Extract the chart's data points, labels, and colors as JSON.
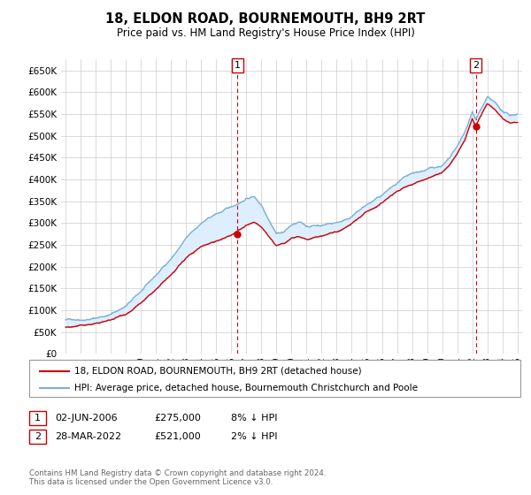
{
  "title": "18, ELDON ROAD, BOURNEMOUTH, BH9 2RT",
  "subtitle": "Price paid vs. HM Land Registry's House Price Index (HPI)",
  "ylim": [
    0,
    675000
  ],
  "xlim_start": 1994.7,
  "xlim_end": 2025.3,
  "legend_line1": "18, ELDON ROAD, BOURNEMOUTH, BH9 2RT (detached house)",
  "legend_line2": "HPI: Average price, detached house, Bournemouth Christchurch and Poole",
  "sale1_date": "02-JUN-2006",
  "sale1_price": "£275,000",
  "sale1_hpi": "8% ↓ HPI",
  "sale1_x": 2006.42,
  "sale1_y": 275000,
  "sale2_date": "28-MAR-2022",
  "sale2_price": "£521,000",
  "sale2_hpi": "2% ↓ HPI",
  "sale2_x": 2022.23,
  "sale2_y": 521000,
  "hpi_color": "#7bafd4",
  "hpi_fill": "#ddeeff",
  "sale_color": "#cc0000",
  "background_color": "#ffffff",
  "grid_color": "#cccccc",
  "footer": "Contains HM Land Registry data © Crown copyright and database right 2024.\nThis data is licensed under the Open Government Licence v3.0."
}
